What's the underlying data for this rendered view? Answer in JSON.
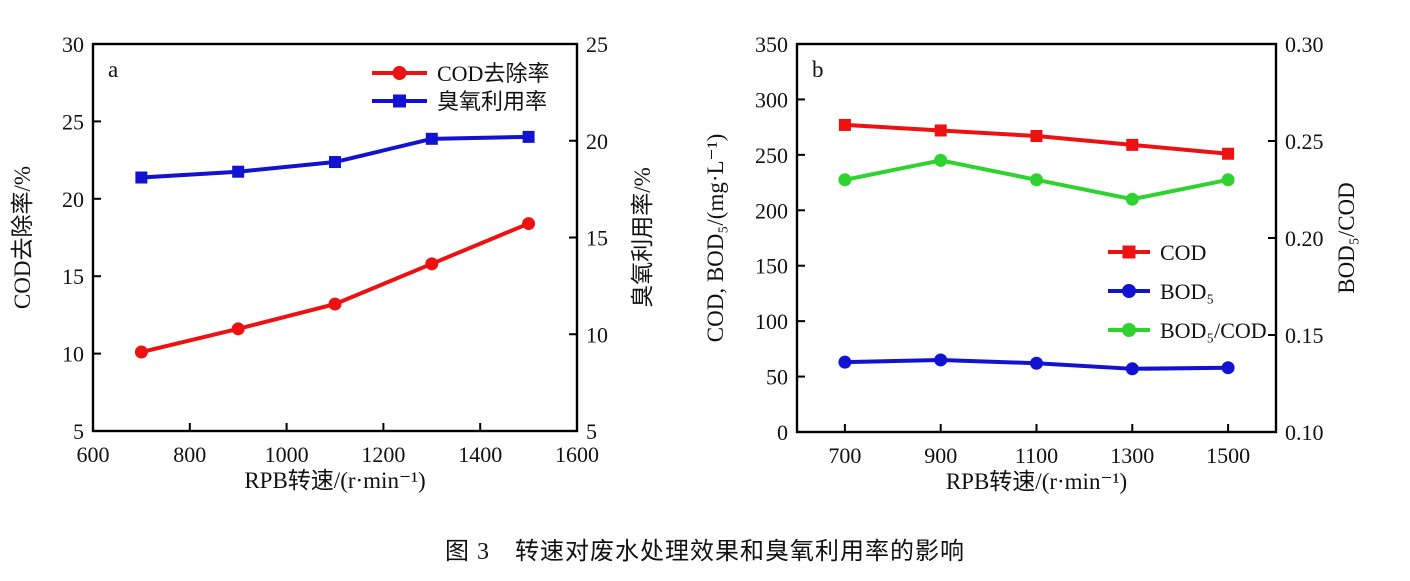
{
  "figure": {
    "caption": "图 3　转速对废水处理效果和臭氧利用率的影响"
  },
  "colors": {
    "red": "#ee1111",
    "blue": "#1212d2",
    "green": "#2fd32f",
    "axis": "#000000"
  },
  "chart_data": [
    {
      "type": "line",
      "panel_label": "a",
      "x": [
        700,
        900,
        1100,
        1300,
        1500
      ],
      "xlim": [
        600,
        1600
      ],
      "x_ticks": [
        "600",
        "800",
        "1000",
        "1200",
        "1400",
        "1600"
      ],
      "xlabel": "RPB转速/(r·min⁻¹)",
      "left_axis": {
        "label": "COD去除率/%",
        "lim": [
          5,
          30
        ],
        "ticks": [
          "5",
          "10",
          "15",
          "20",
          "25",
          "30"
        ]
      },
      "right_axis": {
        "label": "臭氧利用率/%",
        "lim": [
          5,
          25
        ],
        "ticks": [
          "5",
          "10",
          "15",
          "20",
          "25"
        ]
      },
      "grid": false,
      "legend_position": "upper-right-inside",
      "series": [
        {
          "name": "COD去除率",
          "axis": "left",
          "color": "#ee1111",
          "marker": "circle",
          "values": [
            10.1,
            11.6,
            13.2,
            15.8,
            18.4
          ]
        },
        {
          "name": "臭氧利用率",
          "axis": "right",
          "color": "#1212d2",
          "marker": "square",
          "values": [
            18.1,
            18.4,
            18.9,
            20.1,
            20.2
          ]
        }
      ]
    },
    {
      "type": "line",
      "panel_label": "b",
      "x": [
        700,
        900,
        1100,
        1300,
        1500
      ],
      "xlim": [
        600,
        1600
      ],
      "x_ticks": [
        "700",
        "900",
        "1100",
        "1300",
        "1500"
      ],
      "xlabel": "RPB转速/(r·min⁻¹)",
      "left_axis": {
        "label": "COD, BOD₅/(mg·L⁻¹)",
        "lim": [
          0,
          350
        ],
        "ticks": [
          "0",
          "50",
          "100",
          "150",
          "200",
          "250",
          "300",
          "350"
        ]
      },
      "right_axis": {
        "label": "BOD₅/COD",
        "lim": [
          0.1,
          0.3
        ],
        "ticks": [
          "0.10",
          "0.15",
          "0.20",
          "0.25",
          "0.30"
        ]
      },
      "grid": false,
      "legend_position": "middle-right-inside",
      "series": [
        {
          "name": "COD",
          "axis": "left",
          "color": "#ee1111",
          "marker": "square",
          "values": [
            277,
            272,
            267,
            259,
            251
          ]
        },
        {
          "name": "BOD₅",
          "axis": "left",
          "color": "#1212d2",
          "marker": "circle",
          "values": [
            63,
            65,
            62,
            57,
            58
          ]
        },
        {
          "name": "BOD₅/COD",
          "axis": "right",
          "color": "#2fd32f",
          "marker": "circle",
          "values": [
            0.23,
            0.24,
            0.23,
            0.22,
            0.23
          ]
        }
      ]
    }
  ]
}
